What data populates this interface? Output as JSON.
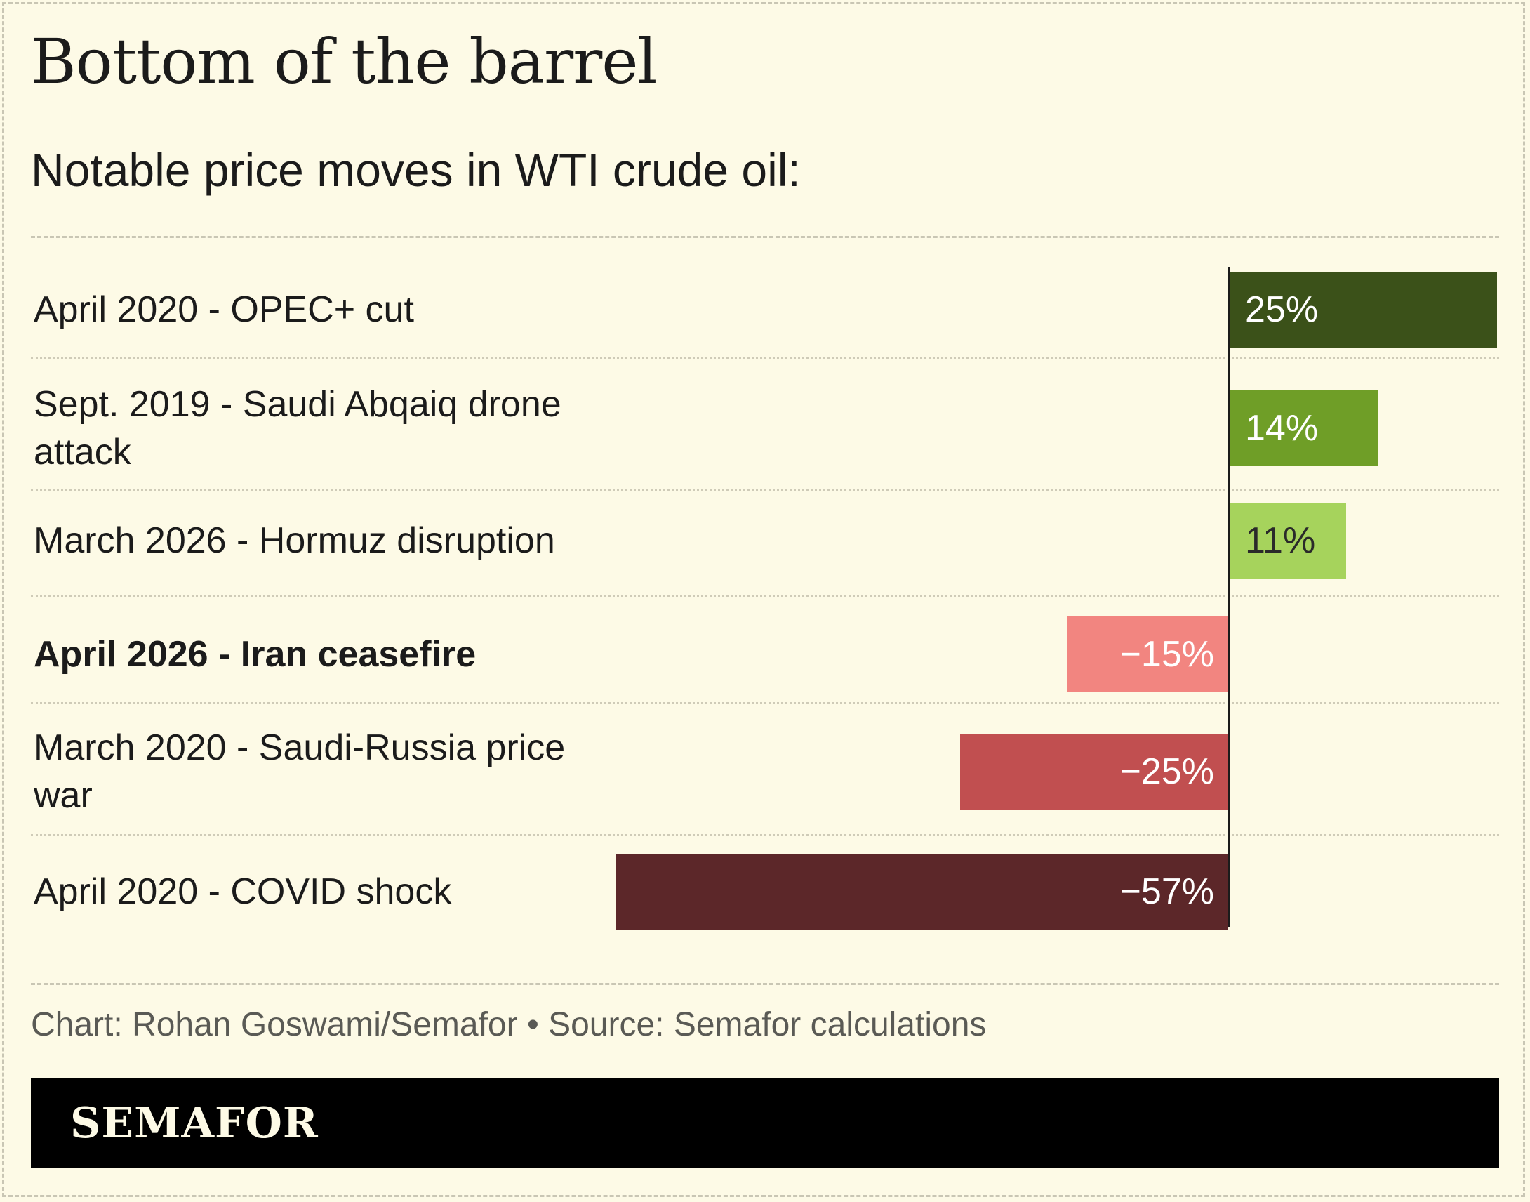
{
  "title": "Bottom of the barrel",
  "subtitle": "Notable price moves in WTI crude oil:",
  "credit": "Chart: Rohan Goswami/Semafor • Source: Semafor calculations",
  "logo": "SEMAFOR",
  "chart_data": {
    "type": "bar",
    "orientation": "horizontal",
    "categories": [
      "April 2020 - OPEC+ cut",
      "Sept. 2019 - Saudi Abqaiq drone attack",
      "March 2026 - Hormuz disruption",
      "April 2026 - Iran ceasefire",
      "March 2020 - Saudi-Russia price war",
      "April 2020 - COVID shock"
    ],
    "values": [
      25,
      14,
      11,
      -15,
      -25,
      -57
    ],
    "value_labels": [
      "25%",
      "14%",
      "11%",
      "−15%",
      "−25%",
      "−57%"
    ],
    "bar_colors": [
      "#3b5119",
      "#6f9e27",
      "#a6d35c",
      "#f28580",
      "#c14f50",
      "#5c2729"
    ],
    "label_colors": [
      "#ffffff",
      "#ffffff",
      "#2a2a2a",
      "#ffffff",
      "#ffffff",
      "#ffffff"
    ],
    "highlighted": [
      false,
      false,
      false,
      true,
      false,
      false
    ],
    "unit": "%",
    "xlim": [
      -57,
      25
    ],
    "grid": false,
    "legend": "none"
  }
}
